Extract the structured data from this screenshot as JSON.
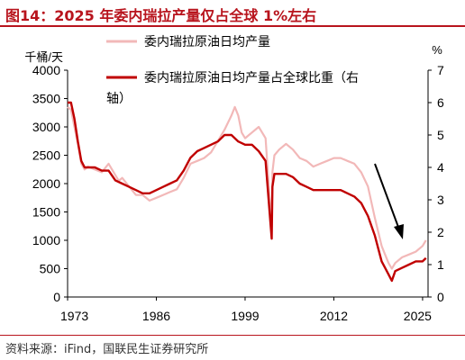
{
  "title": "图14：2025 年委内瑞拉产量仅占全球 1%左右",
  "source": "资料来源：iFind，国联民生证券研究所",
  "colors": {
    "accent": "#b8141d",
    "primary_series": "#c00000",
    "secondary_series": "#f2b8b8",
    "axis": "#000000"
  },
  "chart_data": {
    "type": "line",
    "left_unit": "千桶/天",
    "right_unit": "%",
    "left_ticks": [
      "0",
      "500",
      "1000",
      "1500",
      "2000",
      "2500",
      "3000",
      "3500",
      "4000"
    ],
    "right_ticks": [
      "0",
      "1",
      "2",
      "3",
      "4",
      "5",
      "6",
      "7"
    ],
    "x_ticks": [
      "1973",
      "1986",
      "1999",
      "2012",
      "2025"
    ],
    "ylim_left": [
      0,
      4000
    ],
    "ylim_right": [
      0,
      7
    ],
    "xlim": [
      1973,
      2025.8
    ],
    "legend": {
      "production_label": "委内瑞拉原油日均产量",
      "share_label_line1": "委内瑞拉原油日均产量占全球比重（右",
      "share_label_line2": "轴）"
    },
    "series": [
      {
        "name": "委内瑞拉原油日均产量",
        "axis": "left",
        "color": "#f2b8b8",
        "x": [
          1973.0,
          1973.5,
          1974.0,
          1974.5,
          1975.0,
          1975.5,
          1976.0,
          1977.0,
          1978.0,
          1979.0,
          1980.0,
          1980.5,
          1981.0,
          1982.0,
          1983.0,
          1984.0,
          1985.0,
          1986.0,
          1987.0,
          1988.0,
          1989.0,
          1990.0,
          1991.0,
          1992.0,
          1993.0,
          1994.0,
          1995.0,
          1996.0,
          1997.0,
          1997.5,
          1998.0,
          1998.5,
          1999.0,
          1999.5,
          2000.0,
          2001.0,
          2002.0,
          2002.9,
          2003.0,
          2003.3,
          2004.0,
          2005.0,
          2006.0,
          2007.0,
          2008.0,
          2009.0,
          2010.0,
          2011.0,
          2012.0,
          2013.0,
          2014.0,
          2015.0,
          2016.0,
          2017.0,
          2018.0,
          2019.0,
          2019.5,
          2020.0,
          2020.5,
          2021.0,
          2022.0,
          2023.0,
          2024.0,
          2025.0,
          2025.5
        ],
        "values": [
          3350,
          3300,
          3000,
          2700,
          2350,
          2250,
          2300,
          2250,
          2200,
          2350,
          2150,
          2050,
          2100,
          1950,
          1800,
          1800,
          1700,
          1750,
          1800,
          1850,
          1900,
          2100,
          2350,
          2400,
          2450,
          2550,
          2750,
          2950,
          3200,
          3350,
          3200,
          2900,
          2800,
          2850,
          2900,
          3000,
          2800,
          1200,
          2200,
          2500,
          2600,
          2700,
          2600,
          2450,
          2400,
          2300,
          2350,
          2400,
          2450,
          2450,
          2400,
          2350,
          2200,
          1950,
          1400,
          900,
          750,
          600,
          500,
          600,
          700,
          750,
          800,
          900,
          1000
        ]
      },
      {
        "name": "委内瑞拉原油日均产量占全球比重（右轴）",
        "axis": "right",
        "color": "#c00000",
        "x": [
          1973.0,
          1973.5,
          1974.0,
          1974.5,
          1975.0,
          1975.5,
          1976.0,
          1977.0,
          1978.0,
          1979.0,
          1980.0,
          1981.0,
          1982.0,
          1983.0,
          1984.0,
          1985.0,
          1986.0,
          1987.0,
          1988.0,
          1989.0,
          1990.0,
          1991.0,
          1992.0,
          1993.0,
          1994.0,
          1995.0,
          1996.0,
          1997.0,
          1998.0,
          1999.0,
          2000.0,
          2001.0,
          2002.0,
          2002.9,
          2003.0,
          2003.3,
          2004.0,
          2005.0,
          2006.0,
          2007.0,
          2008.0,
          2009.0,
          2010.0,
          2011.0,
          2012.0,
          2013.0,
          2014.0,
          2015.0,
          2016.0,
          2017.0,
          2018.0,
          2019.0,
          2019.5,
          2020.0,
          2020.5,
          2021.0,
          2022.0,
          2023.0,
          2024.0,
          2025.0,
          2025.5
        ],
        "values": [
          6.0,
          6.0,
          5.5,
          4.8,
          4.2,
          4.0,
          4.0,
          4.0,
          3.9,
          3.9,
          3.6,
          3.5,
          3.4,
          3.3,
          3.2,
          3.2,
          3.3,
          3.4,
          3.5,
          3.6,
          3.9,
          4.3,
          4.5,
          4.6,
          4.7,
          4.8,
          5.0,
          5.0,
          4.8,
          4.7,
          4.7,
          4.5,
          4.2,
          1.8,
          3.4,
          3.8,
          3.8,
          3.8,
          3.7,
          3.5,
          3.4,
          3.3,
          3.3,
          3.3,
          3.3,
          3.3,
          3.2,
          3.1,
          2.9,
          2.5,
          1.9,
          1.1,
          0.9,
          0.7,
          0.5,
          0.8,
          0.9,
          1.0,
          1.1,
          1.1,
          1.2
        ]
      }
    ],
    "annotation": "downward-arrow"
  }
}
